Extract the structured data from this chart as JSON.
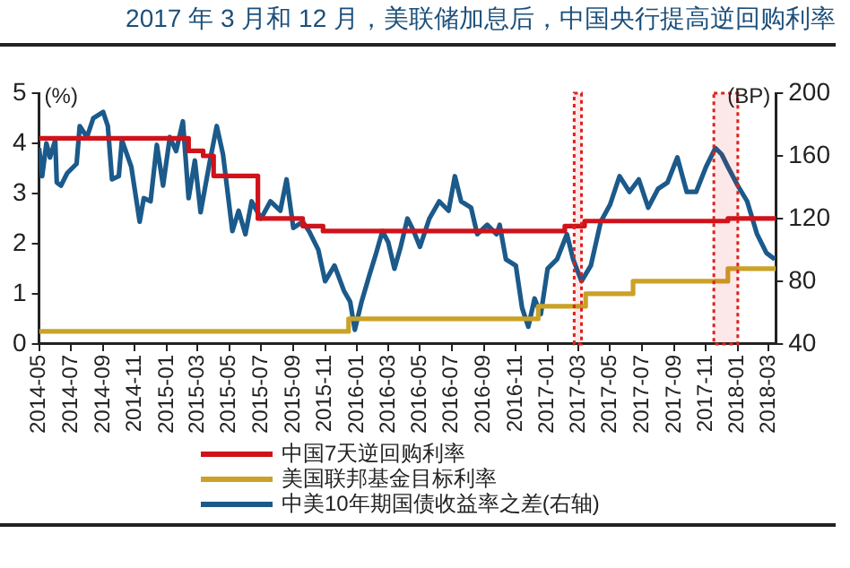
{
  "chart_data": {
    "type": "line",
    "title": "2017 年 3 月和 12 月，美联储加息后，中国央行提高逆回购利率",
    "ylabel": "(%)",
    "y2label": "(BP)",
    "xlim": [
      "2014-05-01",
      "2018-03-15"
    ],
    "xticks": [
      "2014-05",
      "2014-07",
      "2014-09",
      "2014-11",
      "2015-01",
      "2015-03",
      "2015-05",
      "2015-07",
      "2015-09",
      "2015-11",
      "2016-01",
      "2016-03",
      "2016-05",
      "2016-07",
      "2016-09",
      "2016-11",
      "2017-01",
      "2017-03",
      "2017-05",
      "2017-07",
      "2017-09",
      "2017-11",
      "2018-01",
      "2018-03"
    ],
    "ylim": [
      0,
      5
    ],
    "yticks": [
      0,
      1,
      2,
      3,
      4,
      5
    ],
    "y2lim": [
      40,
      200
    ],
    "y2ticks": [
      40,
      80,
      120,
      160,
      200
    ],
    "grid": false,
    "legend": "bottom",
    "marker": "none",
    "bands": [
      {
        "axis": "x",
        "from": "2017-02-21",
        "to": "2017-03-07",
        "color": "#e0201b"
      },
      {
        "axis": "x",
        "from": "2017-11-16",
        "to": "2018-01-01",
        "color": "#e0201b"
      }
    ],
    "series": [
      {
        "name": "中国7天逆回购利率",
        "type": "step",
        "color": "#d0121b",
        "x": [
          "2014-05-01",
          "2015-02-12",
          "2015-03-12",
          "2015-04-01",
          "2015-06-25",
          "2015-09-19",
          "2015-10-28",
          "2017-02-03",
          "2017-03-13",
          "2017-12-13",
          "2018-03-15"
        ],
        "values": [
          4.1,
          3.85,
          3.75,
          3.35,
          2.5,
          2.35,
          2.25,
          2.35,
          2.45,
          2.5,
          2.5
        ]
      },
      {
        "name": "美国联邦基金目标利率",
        "type": "step",
        "color": "#c9a227",
        "x": [
          "2014-05-01",
          "2015-12-16",
          "2016-12-14",
          "2017-03-15",
          "2017-06-14",
          "2017-12-13",
          "2018-03-15"
        ],
        "values": [
          0.25,
          0.5,
          0.75,
          1.0,
          1.25,
          1.5,
          1.5
        ]
      },
      {
        "name": "中美10年期国债收益率之差(右轴)",
        "type": "line",
        "axis": "y2",
        "color": "#1b5a8a",
        "x": [
          "2014-05-01",
          "2014-05-07",
          "2014-05-15",
          "2014-05-22",
          "2014-06-01",
          "2014-06-04",
          "2014-06-12",
          "2014-06-24",
          "2014-07-12",
          "2014-07-18",
          "2014-08-01",
          "2014-08-13",
          "2014-09-01",
          "2014-09-10",
          "2014-09-18",
          "2014-10-01",
          "2014-10-07",
          "2014-10-25",
          "2014-11-10",
          "2014-11-18",
          "2014-12-01",
          "2014-12-13",
          "2014-12-25",
          "2015-01-07",
          "2015-01-19",
          "2015-02-01",
          "2015-02-12",
          "2015-02-24",
          "2015-03-07",
          "2015-03-25",
          "2015-04-07",
          "2015-04-19",
          "2015-05-07",
          "2015-05-19",
          "2015-06-01",
          "2015-06-13",
          "2015-07-01",
          "2015-07-19",
          "2015-08-07",
          "2015-08-19",
          "2015-09-01",
          "2015-09-19",
          "2015-10-01",
          "2015-10-19",
          "2015-11-01",
          "2015-11-19",
          "2015-12-07",
          "2015-12-19",
          "2015-12-28",
          "2016-01-10",
          "2016-01-25",
          "2016-02-07",
          "2016-02-19",
          "2016-03-01",
          "2016-03-13",
          "2016-03-25",
          "2016-04-07",
          "2016-04-19",
          "2016-05-01",
          "2016-05-19",
          "2016-06-07",
          "2016-06-25",
          "2016-07-07",
          "2016-07-19",
          "2016-08-07",
          "2016-08-19",
          "2016-09-07",
          "2016-09-25",
          "2016-10-01",
          "2016-10-13",
          "2016-11-01",
          "2016-11-13",
          "2016-11-25",
          "2016-12-07",
          "2016-12-19",
          "2017-01-01",
          "2017-01-19",
          "2017-02-07",
          "2017-02-19",
          "2017-03-07",
          "2017-03-25",
          "2017-04-13",
          "2017-05-01",
          "2017-05-19",
          "2017-06-07",
          "2017-06-25",
          "2017-07-13",
          "2017-08-01",
          "2017-08-19",
          "2017-09-07",
          "2017-09-25",
          "2017-10-13",
          "2017-11-01",
          "2017-11-19",
          "2017-12-01",
          "2017-12-13",
          "2018-01-01",
          "2018-01-19",
          "2018-02-07",
          "2018-02-25",
          "2018-03-13"
        ],
        "values": [
          165,
          147,
          168,
          159,
          170,
          143,
          141,
          149,
          155,
          179,
          172,
          184,
          188,
          179,
          145,
          147,
          170,
          153,
          118,
          133,
          131,
          167,
          141,
          172,
          163,
          182,
          133,
          157,
          124,
          157,
          179,
          161,
          112,
          125,
          110,
          131,
          120,
          131,
          125,
          145,
          114,
          118,
          112,
          100,
          80,
          90,
          74,
          67,
          49,
          67,
          84,
          98,
          112,
          105,
          88,
          102,
          120,
          112,
          102,
          120,
          131,
          125,
          147,
          131,
          127,
          110,
          116,
          110,
          116,
          94,
          90,
          63,
          51,
          69,
          59,
          88,
          94,
          110,
          94,
          80,
          90,
          118,
          129,
          147,
          137,
          145,
          127,
          139,
          143,
          159,
          137,
          137,
          153,
          165,
          161,
          153,
          141,
          131,
          110,
          98,
          94
        ]
      }
    ]
  }
}
